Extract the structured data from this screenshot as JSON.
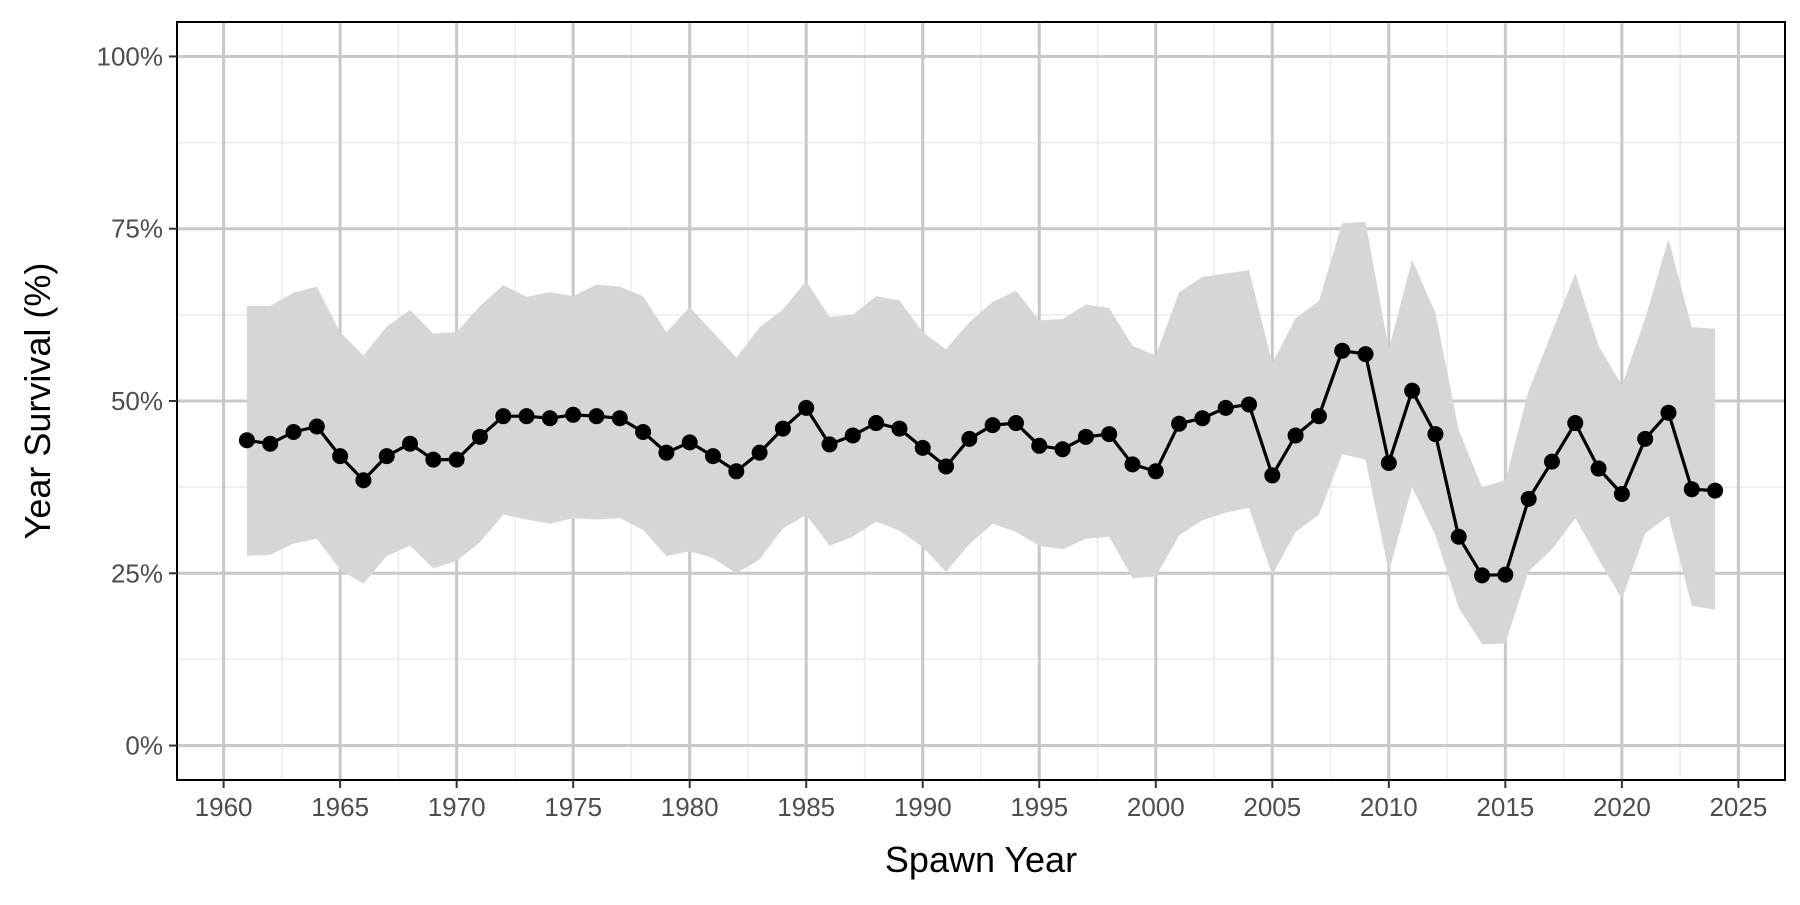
{
  "chart_data": {
    "type": "line",
    "title": "",
    "xlabel": "Spawn Year",
    "ylabel": "Year Survival (%)",
    "xlim": [
      1958,
      2027
    ],
    "ylim": [
      -0.05,
      1.05
    ],
    "x_ticks": [
      1960,
      1965,
      1970,
      1975,
      1980,
      1985,
      1990,
      1995,
      2000,
      2005,
      2010,
      2015,
      2020,
      2025
    ],
    "x_tick_labels": [
      "1960",
      "1965",
      "1970",
      "1975",
      "1980",
      "1985",
      "1990",
      "1995",
      "2000",
      "2005",
      "2010",
      "2015",
      "2020",
      "2025"
    ],
    "y_ticks": [
      0,
      0.25,
      0.5,
      0.75,
      1.0
    ],
    "y_tick_labels": [
      "0%",
      "25%",
      "50%",
      "75%",
      "100%"
    ],
    "grid": true,
    "legend": "none",
    "series": [
      {
        "x": [
          1961,
          1962,
          1963,
          1964,
          1965,
          1966,
          1967,
          1968,
          1969,
          1970,
          1971,
          1972,
          1973,
          1974,
          1975,
          1976,
          1977,
          1978,
          1979,
          1980,
          1981,
          1982,
          1983,
          1984,
          1985,
          1986,
          1987,
          1988,
          1989,
          1990,
          1991,
          1992,
          1993,
          1994,
          1995,
          1996,
          1997,
          1998,
          1999,
          2000,
          2001,
          2002,
          2003,
          2004,
          2005,
          2006,
          2007,
          2008,
          2009,
          2010,
          2011,
          2012,
          2013,
          2014,
          2015,
          2016,
          2017,
          2018,
          2019,
          2020,
          2021,
          2022,
          2023,
          2024
        ],
        "y": [
          0.443,
          0.438,
          0.455,
          0.463,
          0.42,
          0.385,
          0.42,
          0.438,
          0.415,
          0.415,
          0.448,
          0.478,
          0.478,
          0.475,
          0.48,
          0.478,
          0.475,
          0.455,
          0.425,
          0.44,
          0.42,
          0.398,
          0.425,
          0.46,
          0.49,
          0.437,
          0.45,
          0.468,
          0.46,
          0.432,
          0.405,
          0.445,
          0.465,
          0.468,
          0.435,
          0.43,
          0.448,
          0.452,
          0.408,
          0.398,
          0.467,
          0.475,
          0.49,
          0.495,
          0.392,
          0.45,
          0.478,
          0.573,
          0.568,
          0.41,
          0.515,
          0.452,
          0.303,
          0.247,
          0.248,
          0.358,
          0.412,
          0.468,
          0.402,
          0.365,
          0.445,
          0.483,
          0.372,
          0.37
        ],
        "lower": [
          0.275,
          0.277,
          0.293,
          0.3,
          0.255,
          0.235,
          0.275,
          0.29,
          0.257,
          0.268,
          0.295,
          0.335,
          0.328,
          0.322,
          0.33,
          0.328,
          0.33,
          0.313,
          0.275,
          0.282,
          0.272,
          0.25,
          0.27,
          0.315,
          0.335,
          0.29,
          0.303,
          0.325,
          0.312,
          0.288,
          0.252,
          0.292,
          0.322,
          0.31,
          0.29,
          0.285,
          0.3,
          0.303,
          0.243,
          0.245,
          0.305,
          0.327,
          0.338,
          0.345,
          0.247,
          0.31,
          0.335,
          0.423,
          0.415,
          0.252,
          0.375,
          0.305,
          0.2,
          0.147,
          0.148,
          0.253,
          0.285,
          0.33,
          0.27,
          0.213,
          0.308,
          0.333,
          0.203,
          0.197
        ],
        "upper": [
          0.638,
          0.638,
          0.657,
          0.666,
          0.6,
          0.566,
          0.608,
          0.632,
          0.598,
          0.6,
          0.638,
          0.668,
          0.651,
          0.658,
          0.652,
          0.669,
          0.666,
          0.652,
          0.6,
          0.636,
          0.6,
          0.563,
          0.607,
          0.633,
          0.674,
          0.622,
          0.625,
          0.652,
          0.646,
          0.6,
          0.575,
          0.614,
          0.644,
          0.66,
          0.617,
          0.619,
          0.64,
          0.635,
          0.58,
          0.566,
          0.658,
          0.68,
          0.685,
          0.69,
          0.555,
          0.62,
          0.645,
          0.758,
          0.76,
          0.575,
          0.705,
          0.628,
          0.458,
          0.375,
          0.385,
          0.515,
          0.6,
          0.685,
          0.58,
          0.523,
          0.62,
          0.735,
          0.607,
          0.605
        ]
      }
    ],
    "colors": {
      "line": "#000000",
      "point": "#000000",
      "ribbon": "#d6d6d6",
      "grid_major": "#c8c8c8",
      "grid_minor": "#ebebeb",
      "panel_border": "#000000",
      "tick_text": "#4d4d4d"
    }
  }
}
